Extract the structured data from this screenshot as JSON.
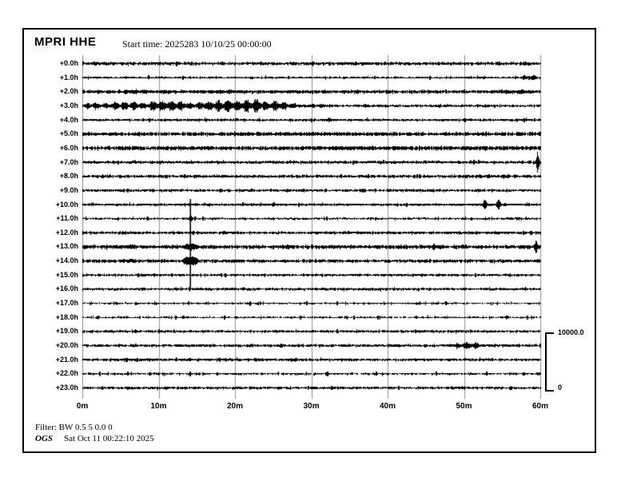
{
  "header": {
    "station": "MPRI HHE",
    "start_time": "Start time: 2025283 10/10/25 00:00:00"
  },
  "footer": {
    "filter": "Filter: BW 0.5 5 0.0 0",
    "agency": "OGS",
    "timestamp": "Sat Oct 11 00:22:10 2025"
  },
  "scale_bar": {
    "max": "10000.0",
    "min": "0"
  },
  "chart_data": {
    "type": "line",
    "subtype": "helicorder-seismogram",
    "title": "MPRI HHE",
    "start_time": "2025283 10/10/25 00:00:00",
    "x_axis": {
      "unit": "minutes",
      "range": [
        0,
        60
      ],
      "ticks": [
        "0m",
        "10m",
        "20m",
        "30m",
        "40m",
        "50m",
        "60m"
      ],
      "tick_minutes": [
        0,
        10,
        20,
        30,
        40,
        50,
        60
      ],
      "gridlines": true
    },
    "y_axis": {
      "row_duration_minutes": 60,
      "rows_count": 24
    },
    "amplitude_scale": {
      "max": 10000.0,
      "min": 0,
      "units": "counts"
    },
    "colors": {
      "trace": "#000000",
      "grid": "#8f8f8f",
      "text": "#000000",
      "background": "#ffffff"
    },
    "amp_units": "counts",
    "rows": [
      {
        "label": "+0.0h",
        "noise": 210,
        "specks": 30,
        "events": [
          {
            "type": "spindle",
            "m0": 0,
            "m1": 7,
            "amp": 280
          },
          {
            "type": "spindle",
            "m0": 9,
            "m1": 13,
            "amp": 240
          },
          {
            "type": "spike",
            "m": 18.3,
            "amp": 330,
            "w": 0.7
          }
        ]
      },
      {
        "label": "+1.0h",
        "noise": 120,
        "specks": 30,
        "events": [
          {
            "type": "spindle",
            "m0": 56.8,
            "m1": 60,
            "amp": 440
          }
        ]
      },
      {
        "label": "+2.0h",
        "noise": 230,
        "specks": 50,
        "events": [
          {
            "type": "spindle",
            "m0": 0,
            "m1": 4,
            "amp": 380
          },
          {
            "type": "spindle",
            "m0": 5,
            "m1": 9,
            "amp": 470
          },
          {
            "type": "spindle",
            "m0": 9,
            "m1": 14,
            "amp": 350
          },
          {
            "type": "spindle",
            "m0": 14,
            "m1": 22,
            "amp": 410
          },
          {
            "type": "spindle",
            "m0": 22,
            "m1": 30,
            "amp": 260
          },
          {
            "type": "spindle",
            "m0": 56,
            "m1": 59.8,
            "amp": 380
          }
        ]
      },
      {
        "label": "+3.0h",
        "noise": 170,
        "specks": 35,
        "events": [
          {
            "type": "spindle",
            "m0": 0,
            "m1": 3,
            "amp": 660
          },
          {
            "type": "spindle",
            "m0": 2,
            "m1": 9,
            "amp": 800
          },
          {
            "type": "spindle",
            "m0": 7,
            "m1": 15,
            "amp": 1020
          },
          {
            "type": "spindle",
            "m0": 13,
            "m1": 29,
            "amp": 1170
          },
          {
            "type": "spindle",
            "m0": 28,
            "m1": 33,
            "amp": 360
          },
          {
            "type": "spike",
            "m": 36,
            "amp": 260,
            "w": 1.2
          }
        ]
      },
      {
        "label": "+4.0h",
        "noise": 140,
        "specks": 40,
        "events": [
          {
            "type": "spindle",
            "m0": 0,
            "m1": 2,
            "amp": 230
          },
          {
            "type": "spindle",
            "m0": 31,
            "m1": 33.5,
            "amp": 390
          },
          {
            "type": "spindle",
            "m0": 56,
            "m1": 60,
            "amp": 200
          }
        ]
      },
      {
        "label": "+5.0h",
        "noise": 250,
        "specks": 25,
        "events": [
          {
            "type": "spindle",
            "m0": 18,
            "m1": 26,
            "amp": 300
          }
        ]
      },
      {
        "label": "+6.0h",
        "noise": 270,
        "specks": 35,
        "events": [
          {
            "type": "spindle",
            "m0": 8,
            "m1": 20,
            "amp": 350
          },
          {
            "type": "spindle",
            "m0": 30,
            "m1": 40,
            "amp": 350
          },
          {
            "type": "spindle",
            "m0": 47,
            "m1": 52,
            "amp": 300
          }
        ]
      },
      {
        "label": "+7.0h",
        "noise": 170,
        "specks": 45,
        "events": [
          {
            "type": "blob",
            "m": 6.5,
            "amp": 260,
            "w": 0.8
          },
          {
            "type": "spike",
            "m": 59.62,
            "amp": 2050,
            "w": 0.38
          },
          {
            "type": "spike",
            "m": 59.62,
            "amp": 580,
            "w": 0.9
          }
        ]
      },
      {
        "label": "+8.0h",
        "noise": 200,
        "specks": 50,
        "events": [
          {
            "type": "spindle",
            "m0": 14,
            "m1": 17,
            "amp": 270
          },
          {
            "type": "spindle",
            "m0": 25,
            "m1": 28,
            "amp": 240
          },
          {
            "type": "spindle",
            "m0": 47,
            "m1": 56,
            "amp": 250
          }
        ]
      },
      {
        "label": "+9.0h",
        "noise": 170,
        "specks": 45,
        "events": [
          {
            "type": "spindle",
            "m0": 3,
            "m1": 8,
            "amp": 220
          },
          {
            "type": "spindle",
            "m0": 40,
            "m1": 49,
            "amp": 230
          }
        ]
      },
      {
        "label": "+10.0h",
        "noise": 145,
        "specks": 40,
        "events": [
          {
            "type": "spindle",
            "m0": 19,
            "m1": 26,
            "amp": 200
          },
          {
            "type": "spike",
            "m": 52.7,
            "amp": 1170,
            "w": 0.55
          },
          {
            "type": "spike",
            "m": 54.5,
            "amp": 1170,
            "w": 0.55
          }
        ]
      },
      {
        "label": "+11.0h",
        "noise": 130,
        "specks": 35,
        "events": [
          {
            "type": "spike",
            "m": 14.15,
            "amp": 660,
            "w": 0.6
          },
          {
            "type": "spindle",
            "m0": 55.5,
            "m1": 57.6,
            "amp": 260
          }
        ]
      },
      {
        "label": "+12.0h",
        "noise": 175,
        "specks": 45,
        "events": [
          {
            "type": "spindle",
            "m0": 17,
            "m1": 21,
            "amp": 290
          },
          {
            "type": "spindle",
            "m0": 30,
            "m1": 32,
            "amp": 260
          },
          {
            "type": "spindle",
            "m0": 42,
            "m1": 48,
            "amp": 240
          },
          {
            "type": "spindle",
            "m0": 52,
            "m1": 57,
            "amp": 280
          }
        ]
      },
      {
        "label": "+13.0h",
        "noise": 250,
        "specks": 50,
        "events": [
          {
            "type": "blob",
            "m": 6.3,
            "amp": 380,
            "w": 0.9
          },
          {
            "type": "spindle",
            "m0": 10.5,
            "m1": 13,
            "amp": 320
          },
          {
            "type": "spike",
            "m": 14.15,
            "amp": 950,
            "w": 0.7
          },
          {
            "type": "blob",
            "m": 14.15,
            "amp": 580,
            "w": 1.0
          },
          {
            "type": "spike",
            "m": 46,
            "amp": 660,
            "w": 0.6
          },
          {
            "type": "spike",
            "m": 59.4,
            "amp": 1240,
            "w": 0.5
          },
          {
            "type": "spike",
            "m": 59.4,
            "amp": 580,
            "w": 1.0
          }
        ]
      },
      {
        "label": "+14.0h",
        "noise": 205,
        "specks": 45,
        "events": [
          {
            "type": "blob",
            "m": 6.3,
            "amp": 320,
            "w": 0.8
          },
          {
            "type": "blob",
            "m": 14.15,
            "amp": 800,
            "w": 1.1
          },
          {
            "type": "spindle",
            "m0": 30,
            "m1": 33,
            "amp": 220
          },
          {
            "type": "spindle",
            "m0": 55,
            "m1": 60,
            "amp": 260
          }
        ]
      },
      {
        "label": "+15.0h",
        "noise": 155,
        "specks": 25,
        "events": []
      },
      {
        "label": "+16.0h",
        "noise": 175,
        "specks": 15,
        "events": []
      },
      {
        "label": "+17.0h",
        "noise": 95,
        "specks": 45,
        "density": 0.92,
        "events": [
          {
            "type": "spindle",
            "m0": 2,
            "m1": 8,
            "amp": 170
          },
          {
            "type": "spindle",
            "m0": 19,
            "m1": 24,
            "amp": 170
          },
          {
            "type": "spindle",
            "m0": 44,
            "m1": 52,
            "amp": 170
          }
        ]
      },
      {
        "label": "+18.0h",
        "noise": 100,
        "specks": 45,
        "density": 0.88,
        "events": [
          {
            "type": "spike",
            "m": 5,
            "amp": 300,
            "w": 0.35
          },
          {
            "type": "spindle",
            "m0": 40,
            "m1": 47,
            "amp": 150
          }
        ]
      },
      {
        "label": "+19.0h",
        "noise": 170,
        "specks": 12,
        "events": []
      },
      {
        "label": "+20.0h",
        "noise": 180,
        "specks": 20,
        "events": [
          {
            "type": "spike",
            "m": 0.5,
            "amp": 300,
            "w": 0.3
          },
          {
            "type": "spindle",
            "m0": 47.5,
            "m1": 53,
            "amp": 620
          },
          {
            "type": "spindle",
            "m0": 53,
            "m1": 57,
            "amp": 220
          }
        ]
      },
      {
        "label": "+21.0h",
        "noise": 150,
        "specks": 60,
        "events": [
          {
            "type": "spindle",
            "m0": 5,
            "m1": 12,
            "amp": 210
          },
          {
            "type": "spindle",
            "m0": 13,
            "m1": 25,
            "amp": 190
          }
        ]
      },
      {
        "label": "+22.0h",
        "noise": 130,
        "specks": 55,
        "density": 0.9,
        "events": [
          {
            "type": "spindle",
            "m0": 3,
            "m1": 8,
            "amp": 150
          }
        ]
      },
      {
        "label": "+23.0h",
        "noise": 180,
        "specks": 10,
        "events": []
      }
    ],
    "overlays": [
      {
        "type": "vline",
        "minute": 14.15,
        "from_row": 9.62,
        "to_row": 16.0
      }
    ]
  }
}
